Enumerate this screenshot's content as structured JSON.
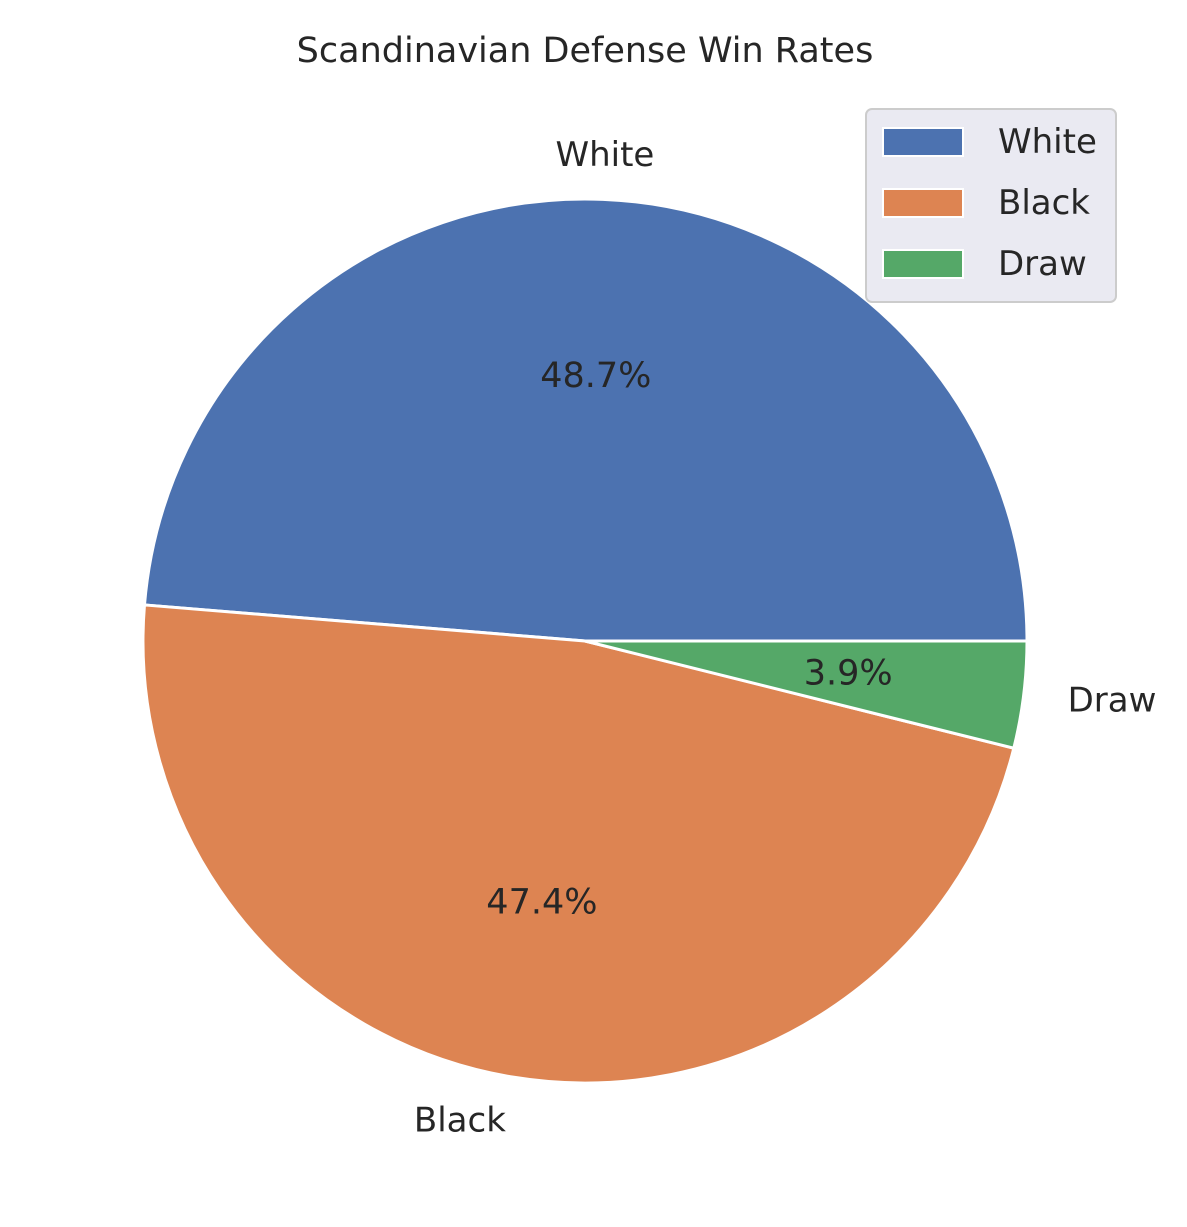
{
  "chart_data": {
    "type": "pie",
    "title": "Scandinavian Defense Win Rates",
    "categories": [
      "White",
      "Black",
      "Draw"
    ],
    "values": [
      48.7,
      47.4,
      3.9
    ],
    "value_labels": [
      "48.7%",
      "47.4%",
      "3.9%"
    ],
    "colors": [
      "#4c72b0",
      "#dd8452",
      "#55a868"
    ],
    "start_angle_deg": 0,
    "direction": "counterclockwise",
    "legend": {
      "placement": "top-right",
      "entries": [
        "White",
        "Black",
        "Draw"
      ],
      "background": "#eaeaf2"
    }
  }
}
